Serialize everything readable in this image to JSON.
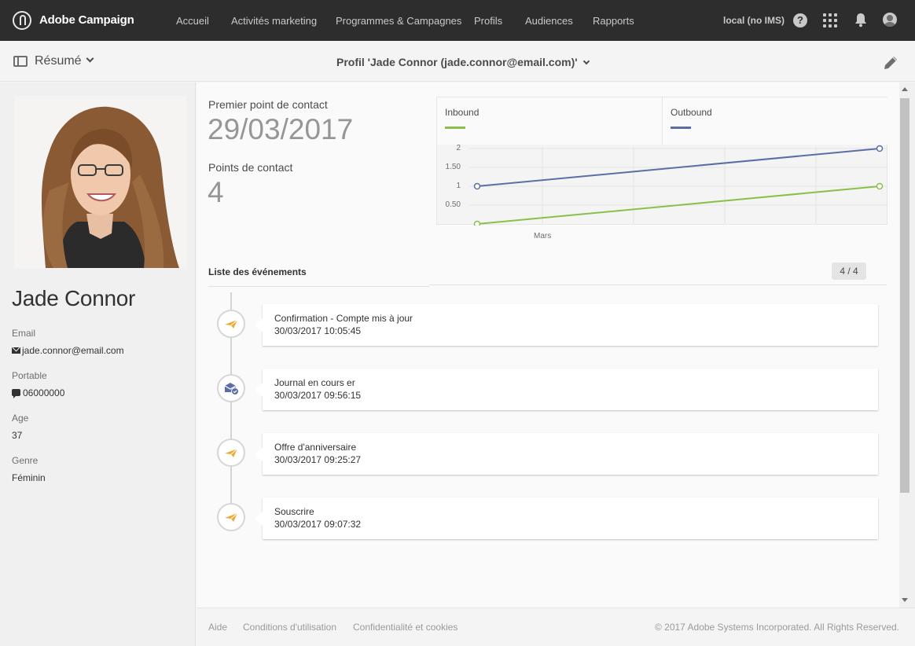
{
  "app": {
    "title": "Adobe Campaign"
  },
  "nav": {
    "items": [
      "Accueil",
      "Activités marketing",
      "Programmes & Campagnes",
      "Profils",
      "Audiences",
      "Rapports"
    ],
    "environment": "local (no IMS)",
    "help_glyph": "?"
  },
  "subheader": {
    "view_label": "Résumé",
    "profile_title": "Profil 'Jade Connor (jade.connor@email.com)'"
  },
  "profile": {
    "name": "Jade Connor",
    "fields": [
      {
        "label": "Email",
        "value": "jade.connor@email.com",
        "icon": "mail-icon"
      },
      {
        "label": "Portable",
        "value": "06000000",
        "icon": "sms-icon"
      },
      {
        "label": "Age",
        "value": "37"
      },
      {
        "label": "Genre",
        "value": "Féminin"
      }
    ]
  },
  "stats": {
    "first_contact_label": "Premier point de contact",
    "first_contact_value": "29/03/2017",
    "touchpoints_label": "Points de contact",
    "touchpoints_value": "4"
  },
  "chart_data": {
    "type": "line",
    "title": "",
    "xlabel": "",
    "ylabel": "",
    "x_tick_labels": [
      "Mars"
    ],
    "y_tick_labels": [
      "2",
      "1.50",
      "1",
      "0.50"
    ],
    "ylim": [
      0,
      2
    ],
    "grid": true,
    "legend": "top",
    "series": [
      {
        "name": "Inbound",
        "color": "#8ac04a",
        "values": [
          0,
          1
        ]
      },
      {
        "name": "Outbound",
        "color": "#5b6fa6",
        "values": [
          1,
          2
        ]
      }
    ]
  },
  "events": {
    "title": "Liste des événements",
    "count": "4 / 4",
    "items": [
      {
        "title": "Confirmation - Compte mis à jour",
        "time": "30/03/2017 10:05:45",
        "icon": "send-icon"
      },
      {
        "title": "Journal en cours  er",
        "time": "30/03/2017 09:56:15",
        "icon": "mail-check-icon"
      },
      {
        "title": "Offre d'anniversaire",
        "time": "30/03/2017 09:25:27",
        "icon": "send-icon"
      },
      {
        "title": "Souscrire",
        "time": "30/03/2017 09:07:32",
        "icon": "send-icon"
      }
    ]
  },
  "footer": {
    "links": [
      "Aide",
      "Conditions d'utilisation",
      "Confidentialité et cookies"
    ],
    "copyright": "© 2017 Adobe Systems Incorporated. All Rights Reserved."
  }
}
